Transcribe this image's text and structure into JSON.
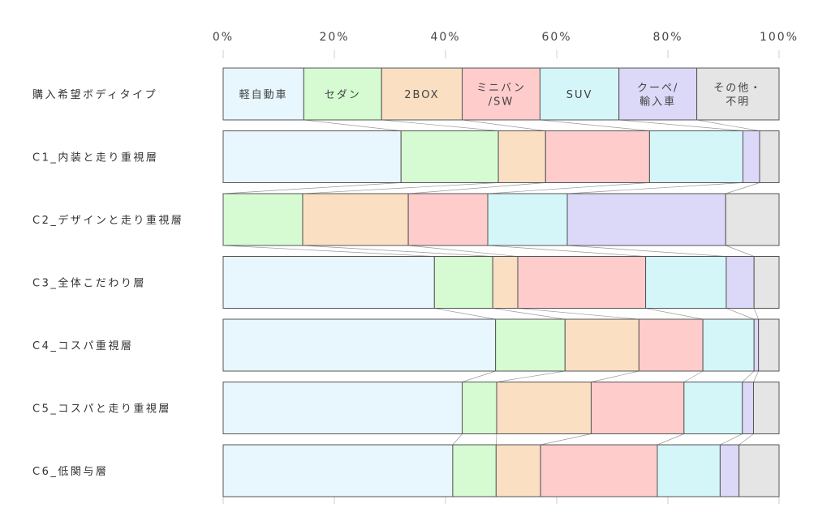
{
  "chart_data": {
    "type": "bar",
    "orientation": "horizontal",
    "stacked": "100%",
    "xlim": [
      0,
      100
    ],
    "x_ticks": [
      "0%",
      "20%",
      "40%",
      "60%",
      "80%",
      "100%"
    ],
    "categories": [
      "購入希望ボディタイプ",
      "C1_内装と走り重視層",
      "C2_デザインと走り重視層",
      "C3_全体こだわり層",
      "C4_コスパ重視層",
      "C5_コスパと走り重視層",
      "C6_低関与層"
    ],
    "series": [
      {
        "name": "軽自動車",
        "label_lines": [
          "軽自動車"
        ],
        "color": "#e8f7fd",
        "values": [
          14.5,
          32,
          0,
          38,
          49,
          43,
          41.3
        ]
      },
      {
        "name": "セダン",
        "label_lines": [
          "セダン"
        ],
        "color": "#d6fbd3",
        "values": [
          14,
          17.5,
          14.3,
          10.5,
          12.5,
          6.2,
          7.8
        ]
      },
      {
        "name": "2BOX",
        "label_lines": [
          "2BOX"
        ],
        "color": "#fbdfc3",
        "values": [
          14.5,
          8.5,
          19,
          4.5,
          13.3,
          17,
          8
        ]
      },
      {
        "name": "ミニバン/SW",
        "label_lines": [
          "ミニバン",
          "/SW"
        ],
        "color": "#ffcccc",
        "values": [
          14,
          18.7,
          14.3,
          23,
          11.5,
          16.7,
          21
        ]
      },
      {
        "name": "SUV",
        "label_lines": [
          "SUV"
        ],
        "color": "#d5f6f8",
        "values": [
          14.2,
          16.8,
          14.3,
          14.5,
          9.2,
          10.5,
          11.3
        ]
      },
      {
        "name": "クーペ/輸入車",
        "label_lines": [
          "クーペ/",
          "輸入車"
        ],
        "color": "#dcd8f8",
        "values": [
          14,
          3,
          28.5,
          5,
          0.8,
          2,
          3.4
        ]
      },
      {
        "name": "その他・不明",
        "label_lines": [
          "その他・",
          "不明"
        ],
        "color": "#e5e5e5",
        "values": [
          14.8,
          3.5,
          9.6,
          4.5,
          3.7,
          4.6,
          7.2
        ]
      }
    ]
  }
}
